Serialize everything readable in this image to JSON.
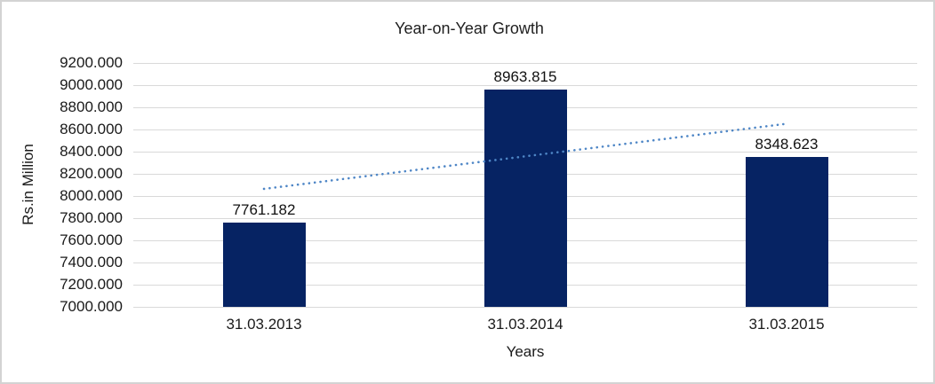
{
  "window": {
    "background": "#ffffff",
    "border_color": "#d3d3d3"
  },
  "chart_data": {
    "type": "bar",
    "title": "Year-on-Year Growth",
    "xlabel": "Years",
    "ylabel": "Rs.in Million",
    "categories": [
      "31.03.2013",
      "31.03.2014",
      "31.03.2015"
    ],
    "values": [
      7761.182,
      8963.815,
      8348.623
    ],
    "data_labels": [
      "7761.182",
      "8963.815",
      "8348.623"
    ],
    "ylim": [
      7000,
      9200
    ],
    "ytick_step": 200,
    "ytick_labels": [
      "9200.000",
      "9000.000",
      "8800.000",
      "8600.000",
      "8400.000",
      "8200.000",
      "8000.000",
      "7800.000",
      "7600.000",
      "7400.000",
      "7200.000",
      "7000.000"
    ],
    "grid": true,
    "legend": "none",
    "bar_color": "#062363",
    "gridline_color": "#d9d9d9",
    "axis_line_color": "#d9d9d9",
    "trendline": {
      "type": "linear",
      "style": "dotted",
      "color": "#4e86c6",
      "start_value": 8064.2,
      "end_value": 8651.6
    }
  }
}
